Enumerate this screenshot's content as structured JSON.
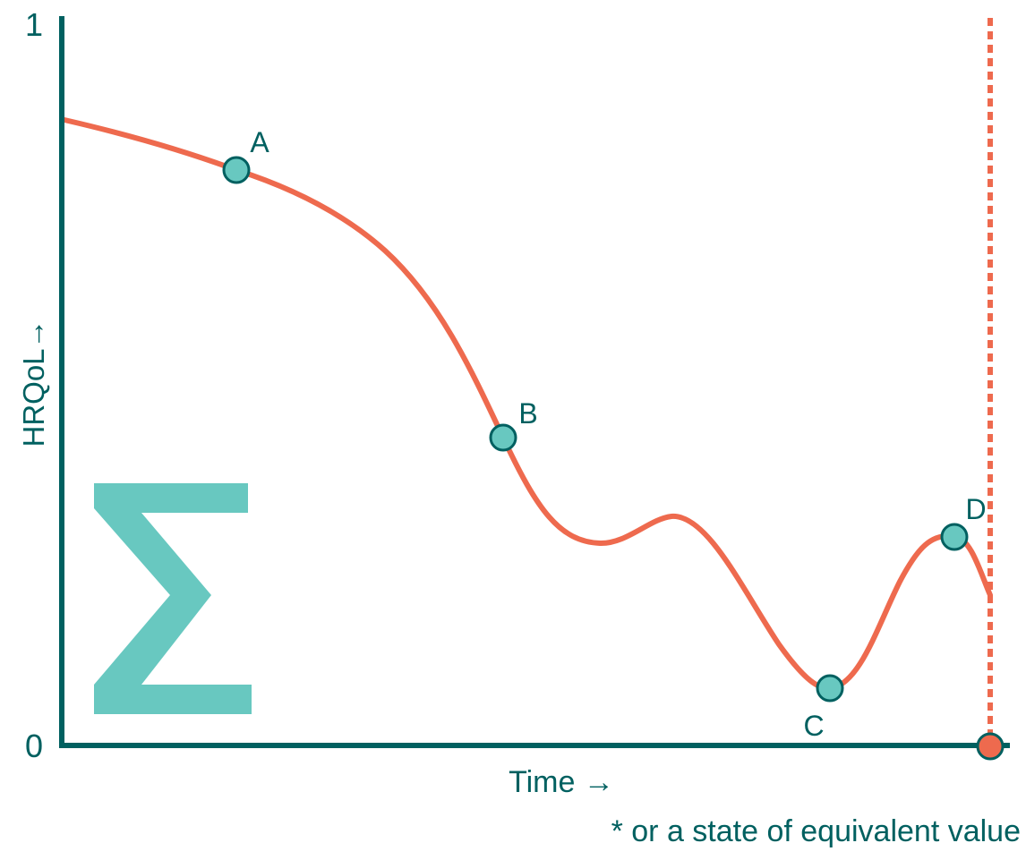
{
  "colors": {
    "axis": "#006060",
    "curve": "#ee6a4e",
    "point_fill": "#68c8c0",
    "point_stroke": "#006060",
    "sigma": "#68c8c0",
    "text": "#006060"
  },
  "axes": {
    "y_label": "HRQoL→",
    "x_label": "Time →",
    "y_top_tick": "1",
    "y_bottom_tick": "0"
  },
  "points": {
    "A": "A",
    "B": "B",
    "C": "C",
    "D": "D"
  },
  "footnote": "* or a state of equivalent value",
  "icon": "sigma-icon"
}
